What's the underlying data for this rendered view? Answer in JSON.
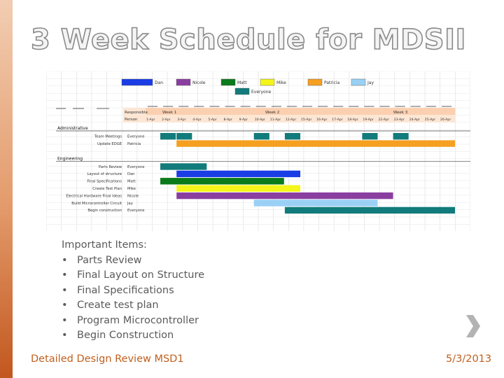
{
  "slide": {
    "title": "3 Week Schedule for MDSII",
    "footer_left": "Detailed Design Review MSD1",
    "footer_right": "5/3/2013"
  },
  "important": {
    "heading": "Important Items:",
    "bullet_char": "•",
    "items": [
      "Parts Review",
      "Final Layout on Structure",
      "Final Specifications",
      "Create test plan",
      "Program Microcontroller",
      "Begin Construction"
    ]
  },
  "gantt": {
    "legend": [
      {
        "name": "Dan",
        "color": "#1a3de6"
      },
      {
        "name": "Nicole",
        "color": "#8a3fa0"
      },
      {
        "name": "Matt",
        "color": "#0a7a1a"
      },
      {
        "name": "Mike",
        "color": "#f5f51a"
      },
      {
        "name": "Patricia",
        "color": "#f5a020"
      },
      {
        "name": "Jay",
        "color": "#9ad0f5"
      },
      {
        "name": "Everyone",
        "color": "#127b7b"
      }
    ],
    "header": {
      "col_a": "Responsible",
      "col_b": "Person",
      "weeks": [
        "Week 1",
        "Week 2",
        "Week 3"
      ]
    },
    "days": [
      "1-Apr",
      "2-Apr",
      "3-Apr",
      "4-Apr",
      "5-Apr",
      "8-Apr",
      "9-Apr",
      "10-Apr",
      "11-Apr",
      "12-Apr",
      "15-Apr",
      "16-Apr",
      "17-Apr",
      "18-Apr",
      "19-Apr",
      "22-Apr",
      "23-Apr",
      "24-Apr",
      "25-Apr",
      "26-Apr"
    ],
    "sections": [
      {
        "label": "Administrative",
        "tasks": [
          {
            "name": "Team Meetings",
            "person": "Everyone",
            "color": "#127b7b",
            "segments": [
              [
                1,
                1
              ],
              [
                3,
                3
              ],
              [
                8,
                8
              ],
              [
                10,
                10
              ],
              [
                15,
                15
              ],
              [
                17,
                17
              ]
            ]
          },
          {
            "name": "Update EDGE",
            "person": "Patricia",
            "color": "#f5a020",
            "segments": [
              [
                3,
                20
              ]
            ]
          }
        ]
      },
      {
        "label": "Engineering",
        "tasks": [
          {
            "name": "Parts Review",
            "person": "Everyone",
            "color": "#127b7b",
            "segments": [
              [
                1,
                3
              ]
            ]
          },
          {
            "name": "Layout of structure",
            "person": "Dan",
            "color": "#1a3de6",
            "segments": [
              [
                3,
                10
              ]
            ]
          },
          {
            "name": "Final Specifications",
            "person": "Matt",
            "color": "#0a7a1a",
            "segments": [
              [
                1,
                8
              ]
            ]
          },
          {
            "name": "Create Test Plan",
            "person": "Mike",
            "color": "#f5f51a",
            "segments": [
              [
                3,
                10
              ]
            ]
          },
          {
            "name": "Electrical Hardware Final Ideas",
            "person": "Nicole",
            "color": "#8a3fa0",
            "segments": [
              [
                3,
                16
              ]
            ]
          },
          {
            "name": "Build Microcontroller Circuit",
            "person": "Jay",
            "color": "#9ad0f5",
            "segments": [
              [
                8,
                15
              ]
            ]
          },
          {
            "name": "Begin construction",
            "person": "Everyone",
            "color": "#127b7b",
            "segments": [
              [
                10,
                20
              ]
            ]
          }
        ]
      }
    ]
  }
}
